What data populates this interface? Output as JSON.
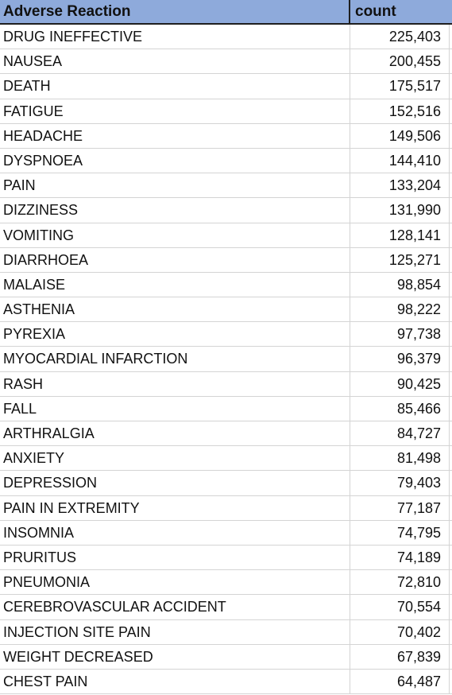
{
  "header": {
    "col1": "Adverse Reaction",
    "col2": "count"
  },
  "rows": [
    {
      "reaction": "DRUG INEFFECTIVE",
      "count": "225,403"
    },
    {
      "reaction": "NAUSEA",
      "count": "200,455"
    },
    {
      "reaction": "DEATH",
      "count": "175,517"
    },
    {
      "reaction": "FATIGUE",
      "count": "152,516"
    },
    {
      "reaction": "HEADACHE",
      "count": "149,506"
    },
    {
      "reaction": "DYSPNOEA",
      "count": "144,410"
    },
    {
      "reaction": "PAIN",
      "count": "133,204"
    },
    {
      "reaction": "DIZZINESS",
      "count": "131,990"
    },
    {
      "reaction": "VOMITING",
      "count": "128,141"
    },
    {
      "reaction": "DIARRHOEA",
      "count": "125,271"
    },
    {
      "reaction": "MALAISE",
      "count": "98,854"
    },
    {
      "reaction": "ASTHENIA",
      "count": "98,222"
    },
    {
      "reaction": "PYREXIA",
      "count": "97,738"
    },
    {
      "reaction": "MYOCARDIAL INFARCTION",
      "count": "96,379"
    },
    {
      "reaction": "RASH",
      "count": "90,425"
    },
    {
      "reaction": "FALL",
      "count": "85,466"
    },
    {
      "reaction": "ARTHRALGIA",
      "count": "84,727"
    },
    {
      "reaction": "ANXIETY",
      "count": "81,498"
    },
    {
      "reaction": "DEPRESSION",
      "count": "79,403"
    },
    {
      "reaction": "PAIN IN EXTREMITY",
      "count": "77,187"
    },
    {
      "reaction": "INSOMNIA",
      "count": "74,795"
    },
    {
      "reaction": "PRURITUS",
      "count": "74,189"
    },
    {
      "reaction": "PNEUMONIA",
      "count": "72,810"
    },
    {
      "reaction": "CEREBROVASCULAR ACCIDENT",
      "count": "70,554"
    },
    {
      "reaction": "INJECTION SITE PAIN",
      "count": "70,402"
    },
    {
      "reaction": "WEIGHT DECREASED",
      "count": "67,839"
    },
    {
      "reaction": "CHEST PAIN",
      "count": "64,487"
    }
  ]
}
